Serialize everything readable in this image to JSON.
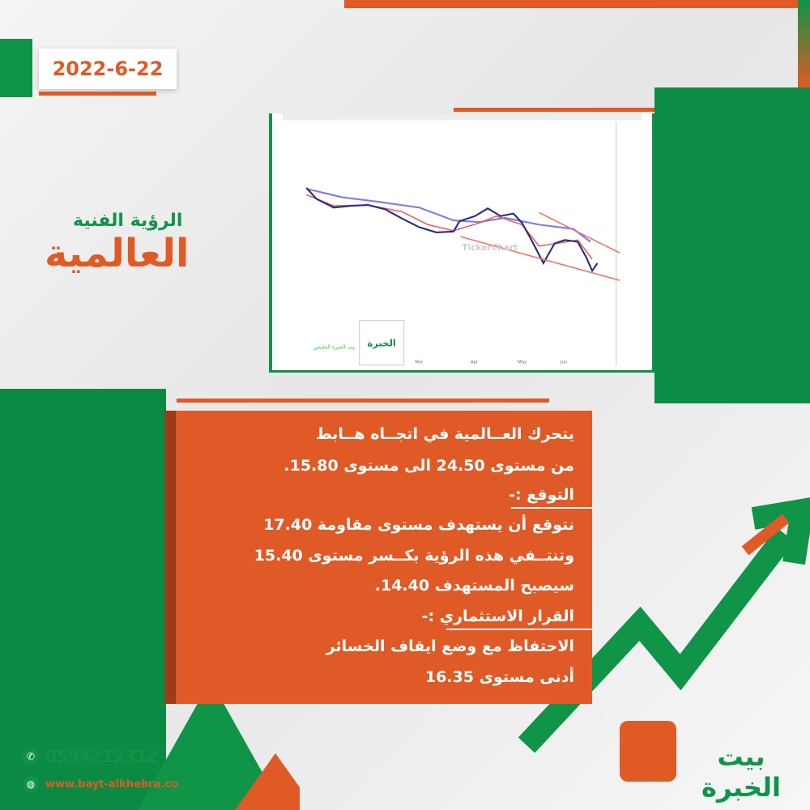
{
  "date": "2022-6-22",
  "title": {
    "line1": "الرؤية الفنية",
    "line2": "العالمية"
  },
  "chart": {
    "watermark": "TickerChart",
    "months": [
      "Mar",
      "Apr",
      "May",
      "Jun"
    ],
    "logo_caption": "بيت الخبرة الخليجي",
    "logo_text": "الخبرة"
  },
  "analysis": {
    "lines": [
      "يتحرك العــالمية في اتجــاه هــابط",
      "من مستوى 24.50 الى مستوى 15.80.",
      "التوقع :-",
      "نتوقع أن يستهدف مستوى مقاومة 17.40",
      "وتنتــفي هذه الرؤية بكــسر مستوى  15.40",
      "سيصبح المستهدف 14.40.",
      "القرار الاستثماري :-",
      "الاحتفاظ مع وضع ايقاف الخسائر",
      "أدنى مستوى 16.35"
    ]
  },
  "contact": {
    "phone": "0594212312",
    "website": "www.bayt-alkhebra.co",
    "phone_icon": "whatsapp-icon",
    "web_icon": "globe-icon"
  },
  "logo": {
    "text": "بيت الخبرة"
  },
  "colors": {
    "orange": "#e05a25",
    "green": "#0f9448"
  }
}
